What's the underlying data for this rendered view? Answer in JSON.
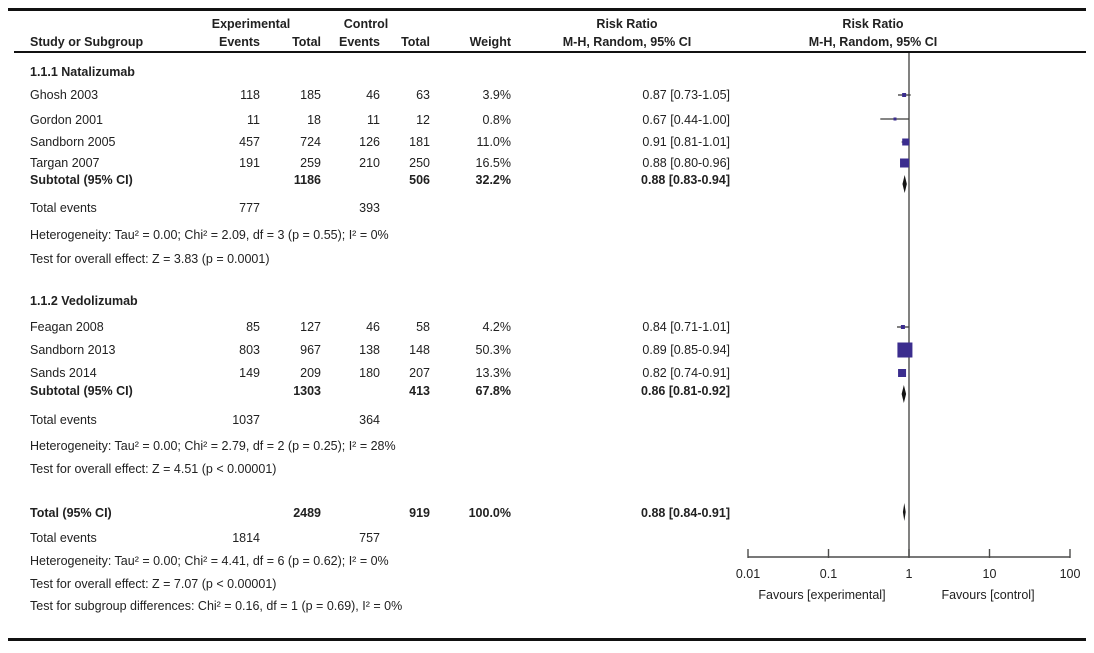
{
  "table": {
    "header": {
      "experimental": "Experimental",
      "control": "Control",
      "risk_ratio": "Risk Ratio",
      "risk_ratio_plot": "Risk Ratio",
      "study": "Study or Subgroup",
      "events": "Events",
      "total": "Total",
      "weight": "Weight",
      "mh": "M-H, Random, 95% CI",
      "mh_plot": "M-H, Random, 95% CI"
    },
    "g1": {
      "title": "1.1.1 Natalizumab",
      "rows": [
        {
          "study": "Ghosh 2003",
          "e1": "118",
          "t1": "185",
          "e2": "46",
          "t2": "63",
          "w": "3.9%",
          "rr": "0.87 [0.73-1.05]"
        },
        {
          "study": "Gordon 2001",
          "e1": "11",
          "t1": "18",
          "e2": "11",
          "t2": "12",
          "w": "0.8%",
          "rr": "0.67 [0.44-1.00]"
        },
        {
          "study": "Sandborn 2005",
          "e1": "457",
          "t1": "724",
          "e2": "126",
          "t2": "181",
          "w": "11.0%",
          "rr": "0.91 [0.81-1.01]"
        },
        {
          "study": "Targan 2007",
          "e1": "191",
          "t1": "259",
          "e2": "210",
          "t2": "250",
          "w": "16.5%",
          "rr": "0.88 [0.80-0.96]"
        }
      ],
      "subtotal": {
        "label": "Subtotal (95% CI)",
        "t1": "1186",
        "t2": "506",
        "w": "32.2%",
        "rr": "0.88 [0.83-0.94]"
      },
      "total_events": {
        "label": "Total events",
        "e1": "777",
        "e2": "393"
      },
      "heterogeneity": "Heterogeneity: Tau² = 0.00; Chi² = 2.09, df = 3 (p = 0.55); I² = 0%",
      "overall_effect": "Test for overall effect: Z = 3.83 (p = 0.0001)"
    },
    "g2": {
      "title": "1.1.2 Vedolizumab",
      "rows": [
        {
          "study": "Feagan 2008",
          "e1": "85",
          "t1": "127",
          "e2": "46",
          "t2": "58",
          "w": "4.2%",
          "rr": "0.84 [0.71-1.01]"
        },
        {
          "study": "Sandborn 2013",
          "e1": "803",
          "t1": "967",
          "e2": "138",
          "t2": "148",
          "w": "50.3%",
          "rr": "0.89 [0.85-0.94]"
        },
        {
          "study": "Sands 2014",
          "e1": "149",
          "t1": "209",
          "e2": "180",
          "t2": "207",
          "w": "13.3%",
          "rr": "0.82 [0.74-0.91]"
        }
      ],
      "subtotal": {
        "label": "Subtotal (95% CI)",
        "t1": "1303",
        "t2": "413",
        "w": "67.8%",
        "rr": "0.86 [0.81-0.92]"
      },
      "total_events": {
        "label": "Total events",
        "e1": "1037",
        "e2": "364"
      },
      "heterogeneity": "Heterogeneity: Tau² = 0.00; Chi² = 2.79, df = 2 (p = 0.25); I² = 28%",
      "overall_effect": "Test for overall effect: Z = 4.51 (p < 0.00001)"
    },
    "totals": {
      "label": "Total (95% CI)",
      "t1": "2489",
      "t2": "919",
      "w": "100.0%",
      "rr": "0.88 [0.84-0.91]",
      "total_events": {
        "label": "Total events",
        "e1": "1814",
        "e2": "757"
      },
      "heterogeneity": "Heterogeneity: Tau² = 0.00; Chi² = 4.41, df = 6 (p = 0.62); I² = 0%",
      "overall_effect": "Test for overall effect: Z = 7.07 (p < 0.00001)",
      "subgroup_diff": "Test for subgroup differences: Chi² = 0.16, df = 1 (p = 0.69), I² = 0%"
    }
  },
  "chart_data": {
    "type": "forest",
    "effect_measure": "Risk Ratio",
    "method": "M-H, Random, 95% CI",
    "x_scale": "log",
    "x_ticks": [
      0.01,
      0.1,
      1,
      10,
      100
    ],
    "x_tick_labels": [
      "0.01",
      "0.1",
      "1",
      "10",
      "100"
    ],
    "null_line": 1,
    "axis_labels": {
      "left": "Favours [experimental]",
      "right": "Favours [control]"
    },
    "colors": {
      "marker": "#3b2d8e",
      "diamond": "#141414",
      "line": "#3c3c3b",
      "axis": "#4c4c4b"
    },
    "groups": [
      {
        "name": "1.1.1 Natalizumab",
        "studies": [
          {
            "name": "Ghosh 2003",
            "rr": 0.87,
            "ci_low": 0.73,
            "ci_high": 1.05,
            "weight": 3.9
          },
          {
            "name": "Gordon 2001",
            "rr": 0.67,
            "ci_low": 0.44,
            "ci_high": 1.0,
            "weight": 0.8
          },
          {
            "name": "Sandborn 2005",
            "rr": 0.91,
            "ci_low": 0.81,
            "ci_high": 1.01,
            "weight": 11.0
          },
          {
            "name": "Targan 2007",
            "rr": 0.88,
            "ci_low": 0.8,
            "ci_high": 0.96,
            "weight": 16.5
          }
        ],
        "subtotal": {
          "rr": 0.88,
          "ci_low": 0.83,
          "ci_high": 0.94,
          "weight": 32.2,
          "events": 777,
          "events_control": 393,
          "total": 1186,
          "total_control": 506,
          "heterogeneity": {
            "tau2": 0.0,
            "chi2": 2.09,
            "df": 3,
            "p": 0.55,
            "i2": "0%"
          },
          "overall": {
            "z": 3.83,
            "p": "0.0001"
          }
        }
      },
      {
        "name": "1.1.2 Vedolizumab",
        "studies": [
          {
            "name": "Feagan 2008",
            "rr": 0.84,
            "ci_low": 0.71,
            "ci_high": 1.01,
            "weight": 4.2
          },
          {
            "name": "Sandborn 2013",
            "rr": 0.89,
            "ci_low": 0.85,
            "ci_high": 0.94,
            "weight": 50.3
          },
          {
            "name": "Sands 2014",
            "rr": 0.82,
            "ci_low": 0.74,
            "ci_high": 0.91,
            "weight": 13.3
          }
        ],
        "subtotal": {
          "rr": 0.86,
          "ci_low": 0.81,
          "ci_high": 0.92,
          "weight": 67.8,
          "events": 1037,
          "events_control": 364,
          "total": 1303,
          "total_control": 413,
          "heterogeneity": {
            "tau2": 0.0,
            "chi2": 2.79,
            "df": 2,
            "p": 0.25,
            "i2": "28%"
          },
          "overall": {
            "z": 4.51,
            "p": "< 0.00001"
          }
        }
      }
    ],
    "total": {
      "rr": 0.88,
      "ci_low": 0.84,
      "ci_high": 0.91,
      "weight": 100.0,
      "events": 1814,
      "events_control": 757,
      "total": 2489,
      "total_control": 919,
      "heterogeneity": {
        "tau2": 0.0,
        "chi2": 4.41,
        "df": 6,
        "p": 0.62,
        "i2": "0%"
      },
      "overall": {
        "z": 7.07,
        "p": "< 0.00001"
      },
      "subgroup_diff": {
        "chi2": 0.16,
        "df": 1,
        "p": 0.69,
        "i2": "0%"
      }
    }
  }
}
